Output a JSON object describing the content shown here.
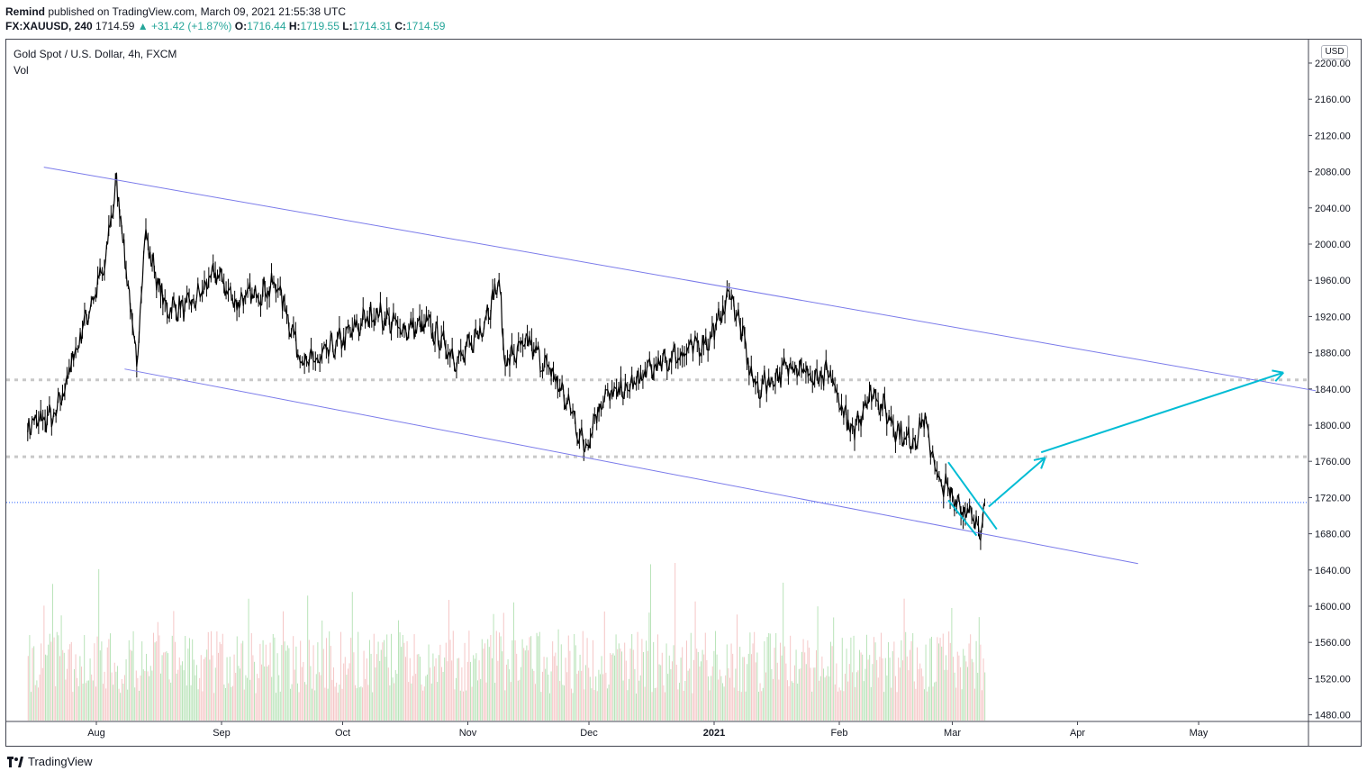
{
  "header": {
    "author": "Remind",
    "published_text": " published on TradingView.com, March 09, 2021 21:55:38 UTC",
    "symbol": "FX:XAUUSD, 240",
    "price": "1714.59",
    "change": "+31.42 (+1.87%)",
    "o_label": "O:",
    "o": "1716.44",
    "h_label": "H:",
    "h": "1719.55",
    "l_label": "L:",
    "l": "1714.31",
    "c_label": "C:",
    "c": "1714.59"
  },
  "legend": {
    "title": "Gold Spot / U.S. Dollar, 4h, FXCM",
    "volume": "Vol"
  },
  "currency": "USD",
  "footer": {
    "brand": "TradingView"
  },
  "colors": {
    "candles": "#000000",
    "channel": "#7b7bea",
    "arrows": "#00bcd4",
    "dotted_levels": "#c8c8c8",
    "last_price_line": "#2962ff",
    "volume_up": "#b9e3b9",
    "volume_down": "#f5c6c6"
  },
  "chart_data": {
    "type": "line",
    "symbol": "XAUUSD",
    "timeframe": "4h",
    "y_axis_ticks": [
      "2200.00",
      "2160.00",
      "2120.00",
      "2080.00",
      "2040.00",
      "2000.00",
      "1960.00",
      "1920.00",
      "1880.00",
      "1840.00",
      "1800.00",
      "1760.00",
      "1720.00",
      "1680.00",
      "1640.00",
      "1600.00",
      "1560.00",
      "1520.00",
      "1480.00"
    ],
    "x_axis_ticks": [
      "Aug",
      "Sep",
      "Oct",
      "Nov",
      "Dec",
      "2021",
      "Feb",
      "Mar",
      "Apr",
      "May"
    ],
    "ylim": [
      1470,
      2210
    ],
    "series": [
      {
        "values_x": [
          "2020-07-15",
          "2020-07-22",
          "2020-07-28",
          "2020-08-03",
          "2020-08-06",
          "2020-08-11",
          "2020-08-13",
          "2020-08-18",
          "2020-08-24",
          "2020-08-31",
          "2020-09-04",
          "2020-09-15",
          "2020-09-21",
          "2020-09-24",
          "2020-10-01",
          "2020-10-09",
          "2020-10-16",
          "2020-10-22",
          "2020-10-30",
          "2020-11-04",
          "2020-11-09",
          "2020-11-10",
          "2020-11-16",
          "2020-11-23",
          "2020-11-27",
          "2020-11-30",
          "2020-12-04",
          "2020-12-10",
          "2020-12-16",
          "2020-12-22",
          "2020-12-31",
          "2021-01-05",
          "2021-01-07",
          "2021-01-11",
          "2021-01-14",
          "2021-01-21",
          "2021-01-27",
          "2021-01-29",
          "2021-02-01",
          "2021-02-04",
          "2021-02-09",
          "2021-02-16",
          "2021-02-19",
          "2021-02-22",
          "2021-02-26",
          "2021-03-01",
          "2021-03-05",
          "2021-03-08",
          "2021-03-09"
        ],
        "values": [
          1800,
          1810,
          1900,
          1975,
          2072,
          1865,
          2010,
          1930,
          1930,
          1970,
          1935,
          1955,
          1870,
          1868,
          1895,
          1925,
          1905,
          1910,
          1870,
          1905,
          1960,
          1870,
          1890,
          1850,
          1810,
          1773,
          1830,
          1838,
          1860,
          1875,
          1895,
          1945,
          1920,
          1840,
          1845,
          1870,
          1845,
          1860,
          1830,
          1790,
          1840,
          1790,
          1780,
          1805,
          1735,
          1725,
          1700,
          1683,
          1714.59
        ]
      }
    ],
    "annotations": {
      "channel_upper": {
        "start": [
          "2020-07-19",
          2085
        ],
        "end": [
          "2021-05-30",
          1838
        ]
      },
      "channel_lower": {
        "start": [
          "2020-08-08",
          1862
        ],
        "end": [
          "2021-04-16",
          1647
        ]
      },
      "wedge_upper": {
        "start": [
          "2021-02-28",
          1759
        ],
        "end": [
          "2021-03-12",
          1685
        ]
      },
      "wedge_lower": {
        "start": [
          "2021-02-28",
          1717
        ],
        "end": [
          "2021-03-07",
          1678
        ]
      },
      "target_arrow_1": {
        "start": [
          "2021-03-10",
          1710
        ],
        "end": [
          "2021-03-24",
          1764
        ]
      },
      "target_arrow_2": {
        "start": [
          "2021-03-23",
          1770
        ],
        "end": [
          "2021-05-22",
          1858
        ]
      },
      "horizontal_levels": [
        1850,
        1765
      ],
      "last_price": 1714.59
    }
  }
}
